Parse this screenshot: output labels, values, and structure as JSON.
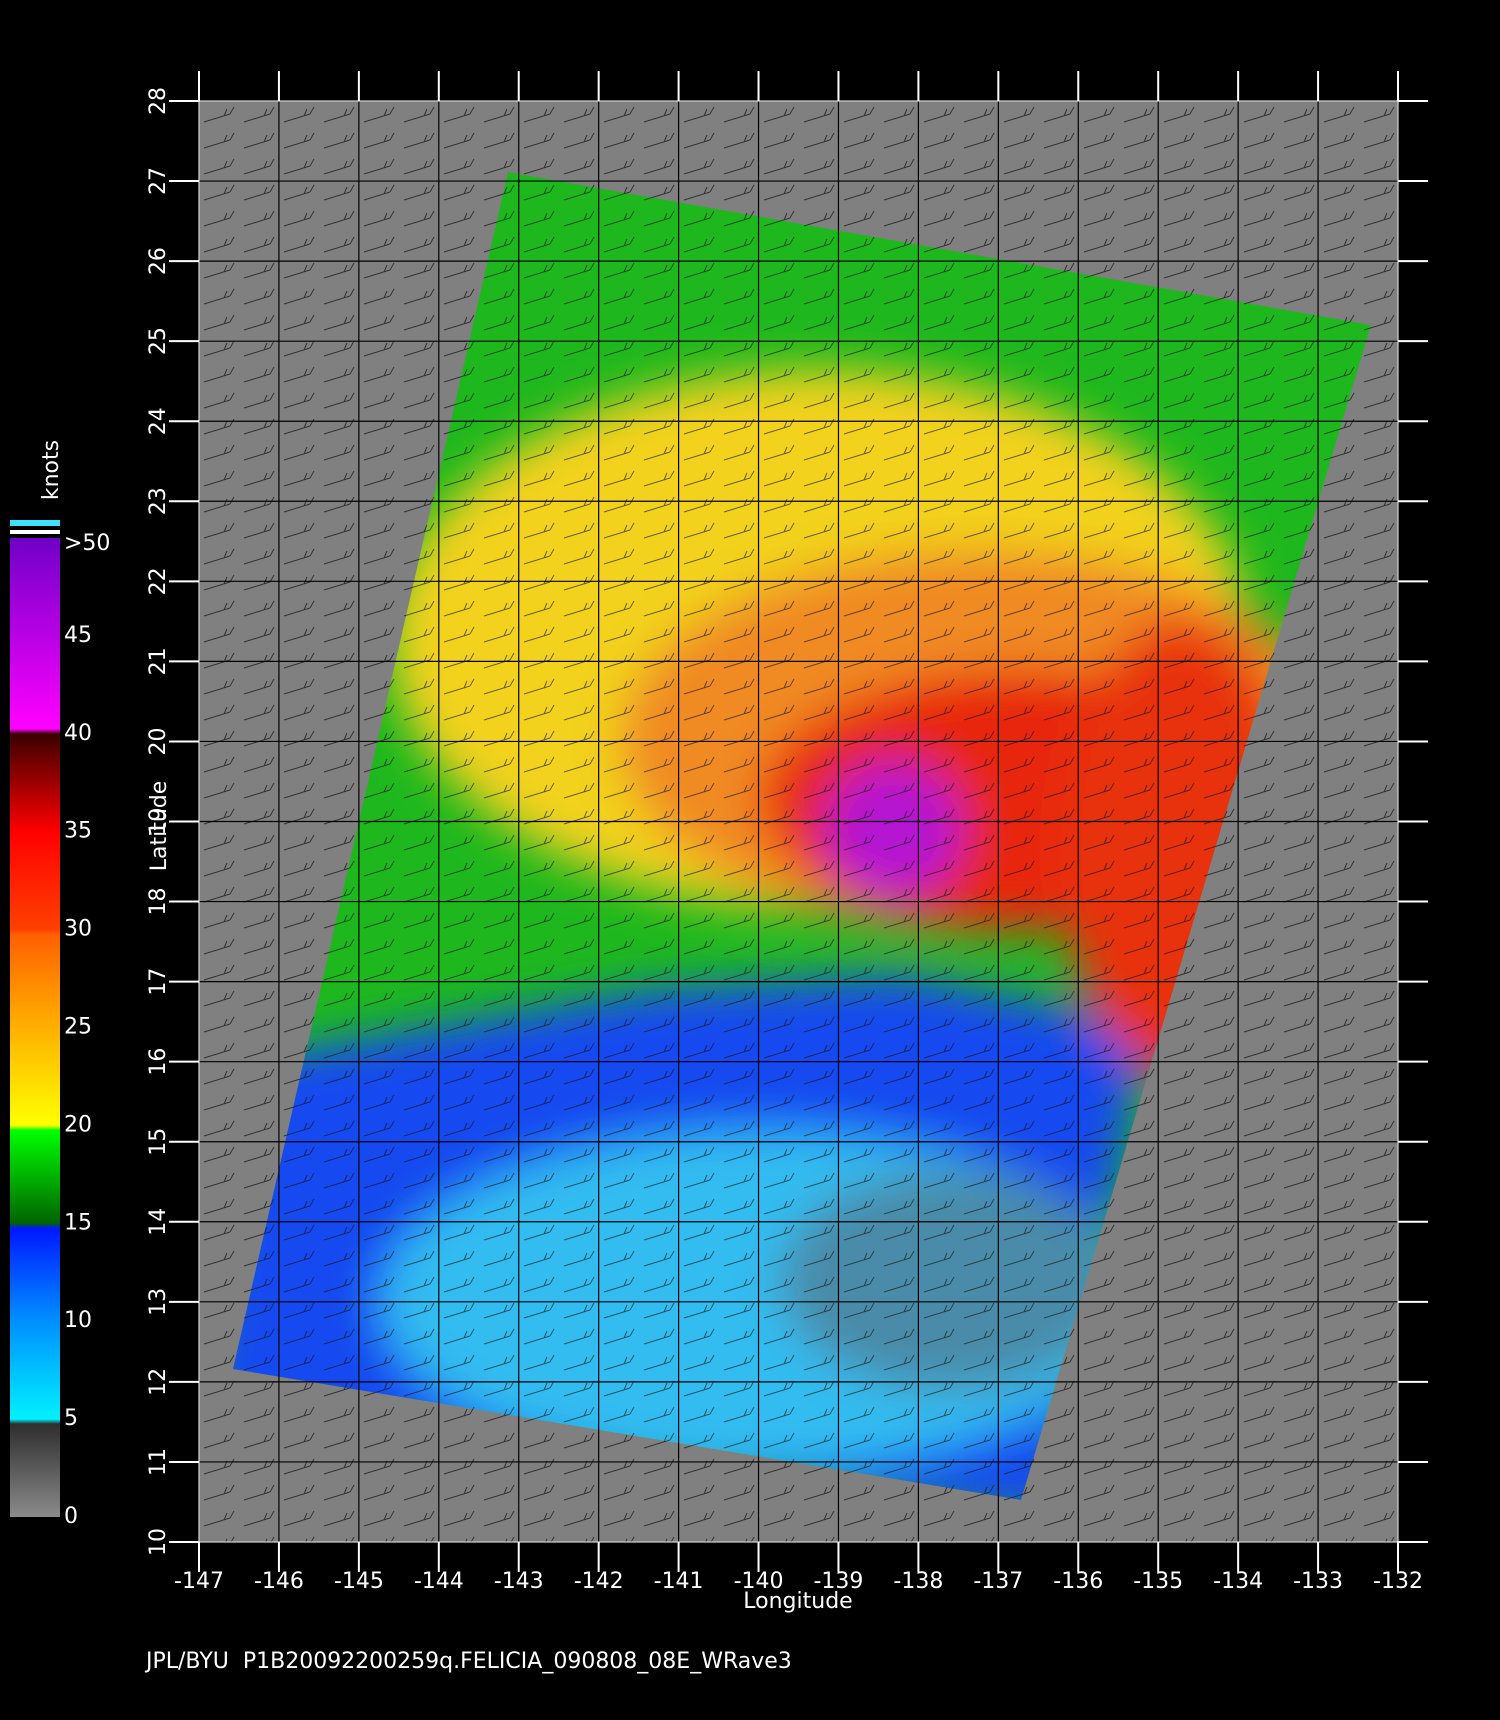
{
  "chart_data": {
    "type": "map",
    "xlabel": "Longitude",
    "ylabel": "Latitude",
    "footer": "JPL/BYU  P1B20092200259q.FELICIA_090808_08E_WRave3",
    "xlim": [
      -147,
      -132
    ],
    "xticks": [
      -147,
      -146,
      -145,
      -144,
      -143,
      -142,
      -141,
      -140,
      -139,
      -138,
      -137,
      -136,
      -135,
      -134,
      -133,
      -132
    ],
    "ylim": [
      10,
      28
    ],
    "yticks": [
      10,
      11,
      12,
      13,
      14,
      15,
      16,
      17,
      18,
      19,
      20,
      21,
      22,
      23,
      24,
      25,
      26,
      27,
      28
    ],
    "grid": true,
    "colorbar": {
      "label": "knots",
      "lim": [
        0,
        50
      ],
      "ticks": [
        0,
        5,
        10,
        15,
        20,
        25,
        30,
        35,
        40,
        45,
        {
          "value": 50,
          "label": ">50"
        }
      ]
    }
  }
}
